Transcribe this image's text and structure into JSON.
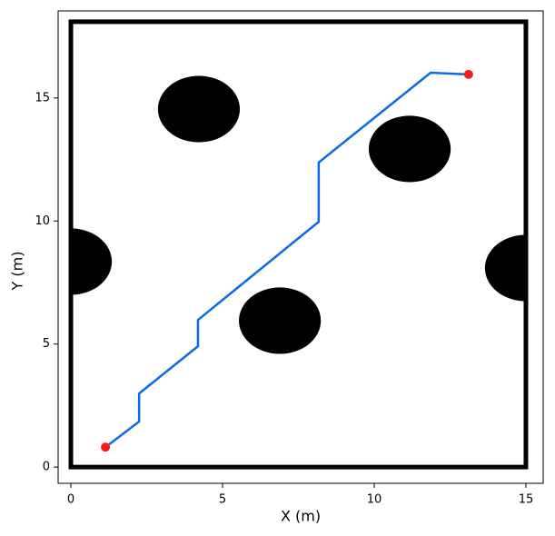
{
  "chart_data": {
    "type": "line",
    "xlabel": "X (m)",
    "ylabel": "Y (m)",
    "xlim": [
      -0.42,
      15.57
    ],
    "ylim": [
      -0.66,
      18.54
    ],
    "xticks": [
      0,
      5,
      10,
      15
    ],
    "yticks": [
      0,
      5,
      10,
      15
    ],
    "walls": {
      "x": [
        0,
        15
      ],
      "y": [
        0,
        18.1
      ]
    },
    "obstacles": [
      {
        "x": 4.22,
        "y": 14.55,
        "r": 1.35
      },
      {
        "x": 11.17,
        "y": 12.93,
        "r": 1.35
      },
      {
        "x": 6.89,
        "y": 5.95,
        "r": 1.35
      },
      {
        "x": 0,
        "y": 8.35,
        "r": 1.35
      },
      {
        "x": 15,
        "y": 8.09,
        "r": 1.35
      }
    ],
    "series": [
      {
        "color": "#0a6ae6",
        "x": [
          1.14,
          2.25,
          2.25,
          4.19,
          4.19,
          8.17,
          8.17,
          11.86,
          13.11
        ],
        "values": [
          0.81,
          1.85,
          2.99,
          4.91,
          5.98,
          9.97,
          12.38,
          16.03,
          15.96
        ]
      }
    ],
    "start": {
      "x": 1.14,
      "y": 0.81,
      "color": "#ff1a1a"
    },
    "goal": {
      "x": 13.11,
      "y": 15.96,
      "color": "#ff1a1a"
    }
  }
}
